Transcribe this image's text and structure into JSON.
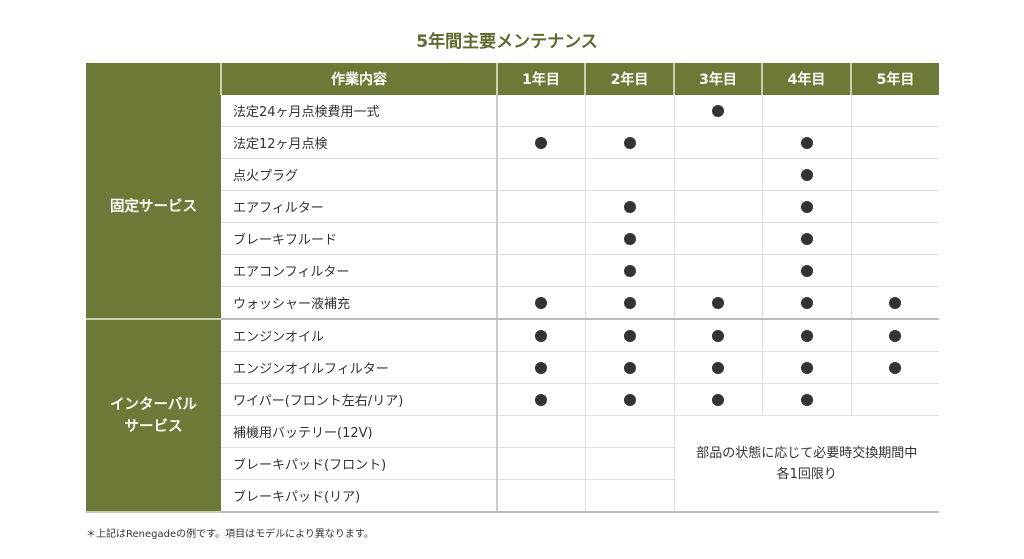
{
  "title": "5年間主要メンテナンス",
  "header": {
    "blank": "",
    "item": "作業内容",
    "years": [
      "1年目",
      "2年目",
      "3年目",
      "4年目",
      "5年目"
    ]
  },
  "groups": [
    {
      "label": "固定サービス",
      "items": [
        {
          "name": "法定24ヶ月点検費用一式",
          "marks": [
            false,
            false,
            true,
            false,
            false
          ]
        },
        {
          "name": "法定12ヶ月点検",
          "marks": [
            true,
            true,
            false,
            true,
            false
          ]
        },
        {
          "name": "点火プラグ",
          "marks": [
            false,
            false,
            false,
            true,
            false
          ]
        },
        {
          "name": "エアフィルター",
          "marks": [
            false,
            true,
            false,
            true,
            false
          ]
        },
        {
          "name": "ブレーキフルード",
          "marks": [
            false,
            true,
            false,
            true,
            false
          ]
        },
        {
          "name": "エアコンフィルター",
          "marks": [
            false,
            true,
            false,
            true,
            false
          ]
        },
        {
          "name": "ウォッシャー液補充",
          "marks": [
            true,
            true,
            true,
            true,
            true
          ]
        }
      ]
    },
    {
      "label_line1": "インターバル",
      "label_line2": "サービス",
      "items": [
        {
          "name": "エンジンオイル",
          "marks": [
            true,
            true,
            true,
            true,
            true
          ]
        },
        {
          "name": "エンジンオイルフィルター",
          "marks": [
            true,
            true,
            true,
            true,
            true
          ]
        },
        {
          "name": "ワイパー(フロント左右/リア)",
          "marks": [
            true,
            true,
            true,
            true,
            false
          ]
        },
        {
          "name": "補機用バッテリー(12V)"
        },
        {
          "name": "ブレーキパッド(フロント)"
        },
        {
          "name": "ブレーキパッド(リア)"
        }
      ]
    }
  ],
  "note_line1": "部品の状態に応じて必要時交換期間中",
  "note_line2": "各1回限り",
  "footnote": "＊上記はRenegadeの例です。項目はモデルにより異なります。",
  "colors": {
    "header_green": "#6b7a36",
    "dot": "#333333"
  }
}
